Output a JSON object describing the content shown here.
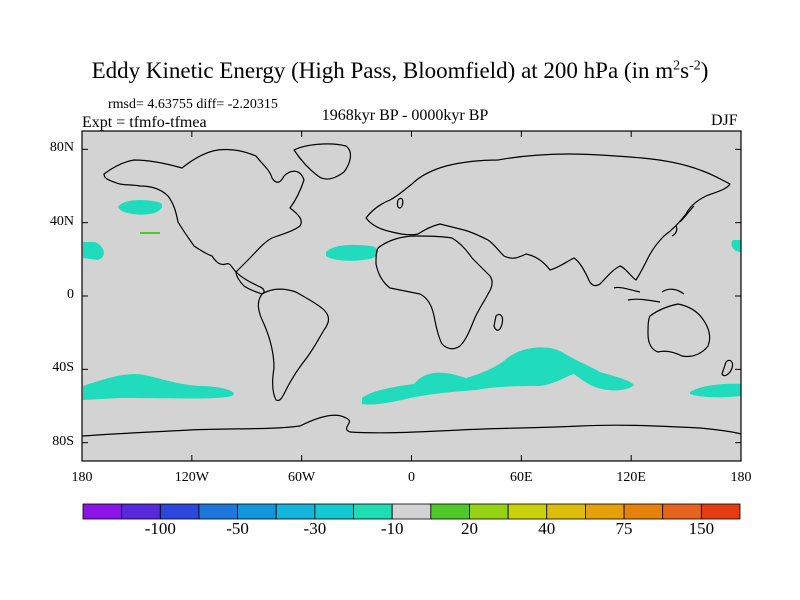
{
  "title": "Eddy Kinetic Energy (High Pass, Bloomfield) at 200 hPa (in m",
  "title_unit_m_exp": "2",
  "title_unit_s": "s",
  "title_unit_s_exp": "-2",
  "title_close": ")",
  "rmsd_text": "rmsd= 4.63755 diff= -2.20315",
  "expt_text": "Expt = tfmfo-tfmea",
  "period_text": "1968kyr BP - 0000kyr BP",
  "season_text": "DJF",
  "colors": {
    "land_sea": "#d3d3d3",
    "anomaly_fill": "#20dcbc",
    "positive_fill": "#50c828",
    "coastline": "#000000"
  },
  "y_axis": {
    "ticks": [
      {
        "label": "80N",
        "lat": 80
      },
      {
        "label": "40N",
        "lat": 40
      },
      {
        "label": "0",
        "lat": 0
      },
      {
        "label": "40S",
        "lat": -40
      },
      {
        "label": "80S",
        "lat": -80
      }
    ]
  },
  "x_axis": {
    "ticks": [
      {
        "label": "180",
        "lon": -180
      },
      {
        "label": "120W",
        "lon": -120
      },
      {
        "label": "60W",
        "lon": -60
      },
      {
        "label": "0",
        "lon": 0
      },
      {
        "label": "60E",
        "lon": 60
      },
      {
        "label": "120E",
        "lon": 120
      },
      {
        "label": "180",
        "lon": 180
      }
    ]
  },
  "colorbar": {
    "colors": [
      "#8c14e6",
      "#5a28dc",
      "#2d46dc",
      "#1e78dc",
      "#1496dc",
      "#14b4dc",
      "#14c8d2",
      "#1edcb4",
      "#d3d3d3",
      "#50c828",
      "#96d214",
      "#c8d20a",
      "#dcbe0a",
      "#e6a00a",
      "#e6820a",
      "#e6641e",
      "#e63c14"
    ],
    "labels": [
      {
        "text": "-100",
        "index": 2
      },
      {
        "text": "-50",
        "index": 4
      },
      {
        "text": "-30",
        "index": 6
      },
      {
        "text": "-10",
        "index": 8
      },
      {
        "text": "20",
        "index": 10
      },
      {
        "text": "40",
        "index": 12
      },
      {
        "text": "75",
        "index": 14
      },
      {
        "text": "150",
        "index": 16
      }
    ]
  }
}
